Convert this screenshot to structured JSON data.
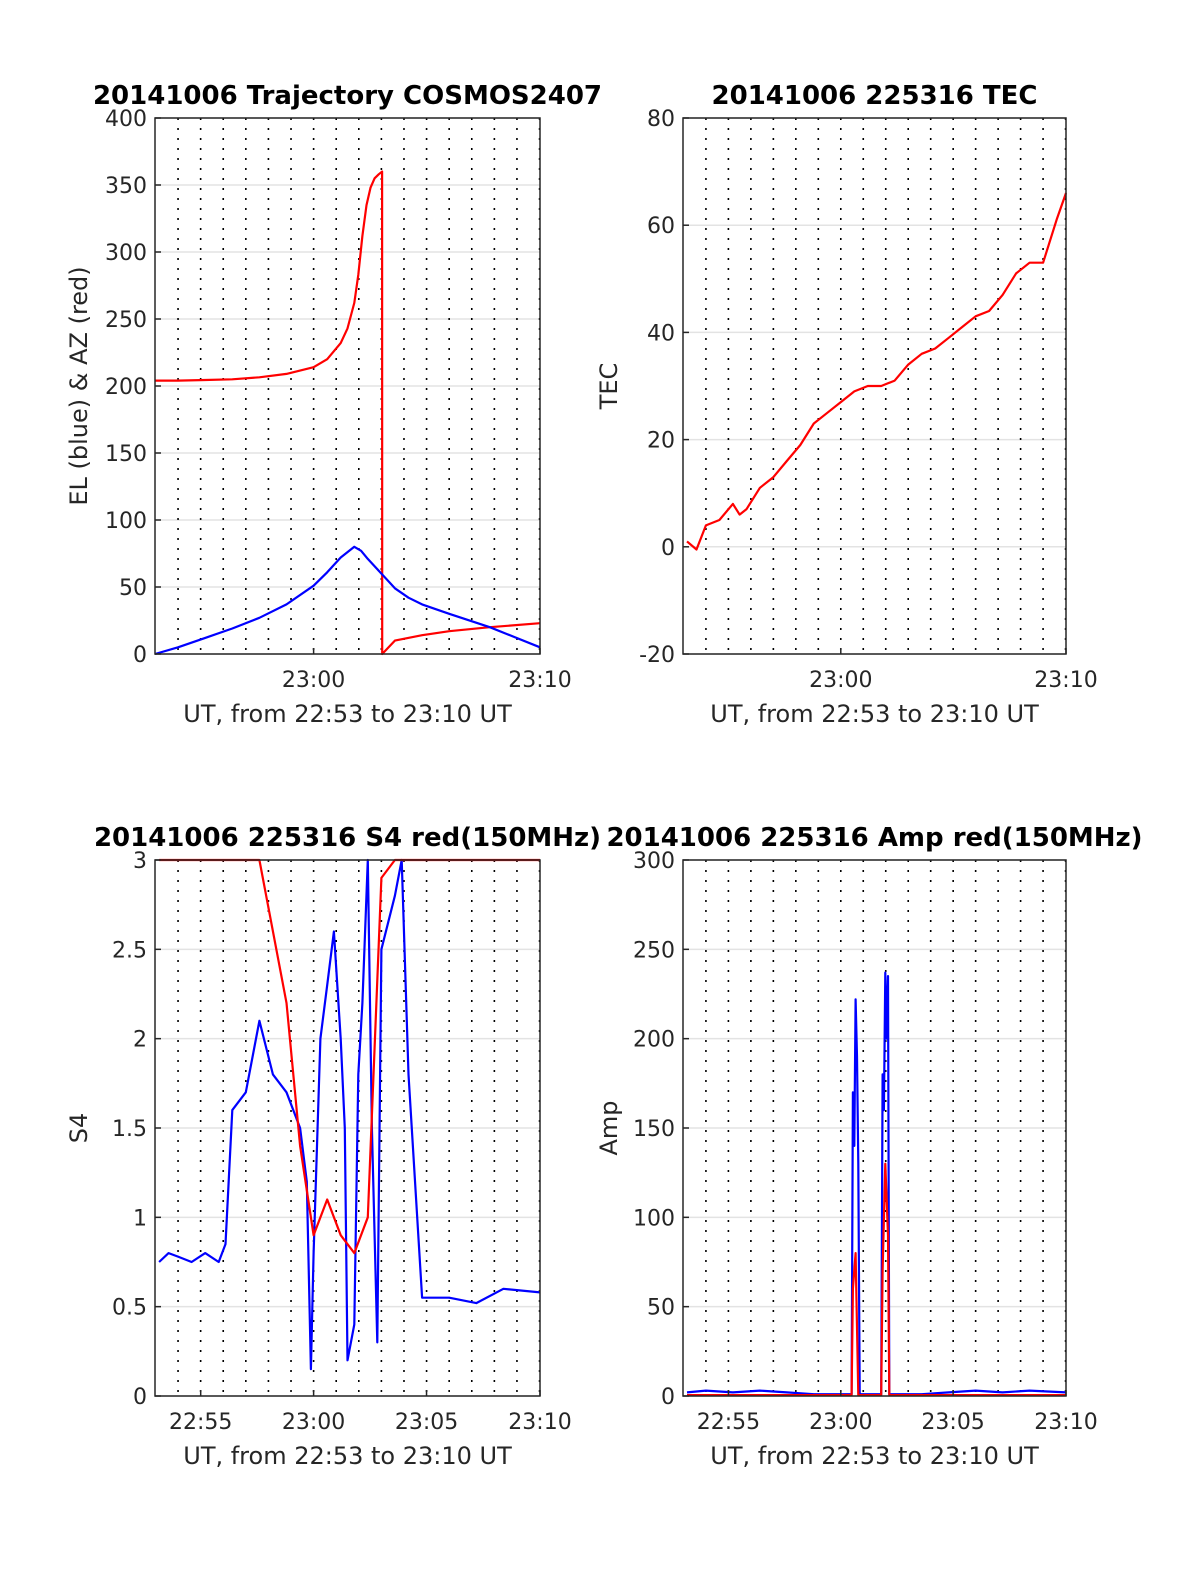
{
  "chart_data": [
    {
      "type": "line",
      "title": "20141006 Trajectory COSMOS2407",
      "xlabel": "UT, from 22:53 to 23:10 UT",
      "ylabel": "EL (blue) & AZ (red)",
      "xlim": [
        22.883,
        23.167
      ],
      "ylim": [
        0,
        400
      ],
      "x_ticks": [
        {
          "label": "23:00",
          "value": 23.0
        },
        {
          "label": "23:10",
          "value": 23.167
        }
      ],
      "y_ticks": [
        {
          "label": "0",
          "value": 0
        },
        {
          "label": "50",
          "value": 50
        },
        {
          "label": "100",
          "value": 100
        },
        {
          "label": "150",
          "value": 150
        },
        {
          "label": "200",
          "value": 200
        },
        {
          "label": "250",
          "value": 250
        },
        {
          "label": "300",
          "value": 300
        },
        {
          "label": "350",
          "value": 350
        },
        {
          "label": "400",
          "value": 400
        }
      ],
      "grid": true,
      "series": [
        {
          "color": "#ff0000",
          "x": [
            22.883,
            22.9,
            22.92,
            22.94,
            22.96,
            22.98,
            23.0,
            23.01,
            23.02,
            23.025,
            23.03,
            23.033,
            23.036,
            23.039,
            23.042,
            23.045,
            23.048,
            23.0505,
            23.0506,
            23.06,
            23.08,
            23.1,
            23.13,
            23.167
          ],
          "y": [
            204,
            204,
            204.5,
            205,
            206.5,
            209,
            214,
            220,
            232,
            243,
            262,
            283,
            312,
            335,
            348,
            355,
            358,
            360,
            0,
            10,
            14,
            17,
            20,
            23
          ]
        },
        {
          "color": "#0000ff",
          "x": [
            22.883,
            22.9,
            22.92,
            22.94,
            22.96,
            22.98,
            23.0,
            23.01,
            23.02,
            23.03,
            23.035,
            23.04,
            23.05,
            23.06,
            23.07,
            23.08,
            23.1,
            23.13,
            23.167
          ],
          "y": [
            0,
            5,
            12,
            19,
            27,
            37,
            51,
            61,
            72,
            80,
            77,
            71,
            60,
            49,
            42,
            37,
            30,
            20,
            5
          ]
        }
      ]
    },
    {
      "type": "line",
      "title": "20141006 225316 TEC",
      "xlabel": "UT, from 22:53 to 23:10 UT",
      "ylabel": "TEC",
      "xlim": [
        22.883,
        23.167
      ],
      "ylim": [
        -20,
        80
      ],
      "x_ticks": [
        {
          "label": "23:00",
          "value": 23.0
        },
        {
          "label": "23:10",
          "value": 23.167
        }
      ],
      "y_ticks": [
        {
          "label": "-20",
          "value": -20
        },
        {
          "label": "0",
          "value": 0
        },
        {
          "label": "20",
          "value": 20
        },
        {
          "label": "40",
          "value": 40
        },
        {
          "label": "60",
          "value": 60
        },
        {
          "label": "80",
          "value": 80
        }
      ],
      "grid": true,
      "series": [
        {
          "color": "#ff0000",
          "x": [
            22.886,
            22.893,
            22.9,
            22.91,
            22.92,
            22.925,
            22.93,
            22.94,
            22.95,
            22.96,
            22.97,
            22.98,
            22.99,
            23.0,
            23.01,
            23.02,
            23.03,
            23.04,
            23.05,
            23.06,
            23.07,
            23.08,
            23.09,
            23.1,
            23.11,
            23.12,
            23.13,
            23.14,
            23.15,
            23.16,
            23.167
          ],
          "y": [
            1,
            -0.5,
            4,
            5,
            8,
            6,
            7,
            11,
            13,
            16,
            19,
            23,
            25,
            27,
            29,
            30,
            30,
            31,
            34,
            36,
            37,
            39,
            41,
            43,
            44,
            47,
            51,
            53,
            53,
            61,
            66
          ]
        }
      ]
    },
    {
      "type": "line",
      "title": "20141006 225316 S4 red(150MHz)",
      "xlabel": "UT, from 22:53 to 23:10 UT",
      "ylabel": "S4",
      "xlim": [
        22.883,
        23.167
      ],
      "ylim": [
        0,
        3
      ],
      "x_ticks": [
        {
          "label": "22:55",
          "value": 22.9167
        },
        {
          "label": "23:00",
          "value": 23.0
        },
        {
          "label": "23:05",
          "value": 23.0833
        },
        {
          "label": "23:10",
          "value": 23.167
        }
      ],
      "y_ticks": [
        {
          "label": "0",
          "value": 0
        },
        {
          "label": "0.5",
          "value": 0.5
        },
        {
          "label": "1",
          "value": 1
        },
        {
          "label": "1.5",
          "value": 1.5
        },
        {
          "label": "2",
          "value": 2
        },
        {
          "label": "2.5",
          "value": 2.5
        },
        {
          "label": "3",
          "value": 3
        }
      ],
      "grid": true,
      "series": [
        {
          "color": "#0000ff",
          "x": [
            22.886,
            22.893,
            22.9,
            22.91,
            22.92,
            22.93,
            22.935,
            22.94,
            22.95,
            22.96,
            22.97,
            22.98,
            22.99,
            22.995,
            22.998,
            23.0,
            23.005,
            23.01,
            23.015,
            23.02,
            23.023,
            23.025,
            23.03,
            23.033,
            23.036,
            23.04,
            23.043,
            23.047,
            23.05,
            23.06,
            23.065,
            23.07,
            23.08,
            23.1,
            23.12,
            23.14,
            23.167
          ],
          "y": [
            0.75,
            0.8,
            0.78,
            0.75,
            0.8,
            0.75,
            0.85,
            1.6,
            1.7,
            2.1,
            1.8,
            1.7,
            1.5,
            1.2,
            0.15,
            0.8,
            2.0,
            2.3,
            2.6,
            2.0,
            1.5,
            0.2,
            0.4,
            1.8,
            2.2,
            3.0,
            1.5,
            0.3,
            2.5,
            2.8,
            3.0,
            1.8,
            0.55,
            0.55,
            0.52,
            0.6,
            0.58
          ]
        },
        {
          "color": "#ff0000",
          "x": [
            22.886,
            22.9,
            22.92,
            22.94,
            22.96,
            22.98,
            22.99,
            23.0,
            23.01,
            23.02,
            23.03,
            23.04,
            23.05,
            23.06,
            23.07,
            23.08,
            23.1,
            23.12,
            23.14,
            23.167
          ],
          "y": [
            3,
            3,
            3,
            3,
            3,
            2.2,
            1.4,
            0.9,
            1.1,
            0.9,
            0.8,
            1.0,
            2.9,
            3.0,
            3.0,
            3.0,
            3.0,
            3.0,
            3.0,
            3.0
          ]
        }
      ]
    },
    {
      "type": "line",
      "title": "20141006 225316 Amp red(150MHz)",
      "xlabel": "UT, from 22:53 to 23:10 UT",
      "ylabel": "Amp",
      "xlim": [
        22.883,
        23.167
      ],
      "ylim": [
        0,
        300
      ],
      "x_ticks": [
        {
          "label": "22:55",
          "value": 22.9167
        },
        {
          "label": "23:00",
          "value": 23.0
        },
        {
          "label": "23:05",
          "value": 23.0833
        },
        {
          "label": "23:10",
          "value": 23.167
        }
      ],
      "y_ticks": [
        {
          "label": "0",
          "value": 0
        },
        {
          "label": "50",
          "value": 50
        },
        {
          "label": "100",
          "value": 100
        },
        {
          "label": "150",
          "value": 150
        },
        {
          "label": "200",
          "value": 200
        },
        {
          "label": "250",
          "value": 250
        },
        {
          "label": "300",
          "value": 300
        }
      ],
      "grid": true,
      "series": [
        {
          "color": "#0000ff",
          "x": [
            22.886,
            22.9,
            22.92,
            22.94,
            22.96,
            22.98,
            22.995,
            23.008,
            23.009,
            23.01,
            23.011,
            23.012,
            23.013,
            23.014,
            23.016,
            23.03,
            23.031,
            23.032,
            23.033,
            23.034,
            23.035,
            23.036,
            23.04,
            23.06,
            23.08,
            23.1,
            23.12,
            23.14,
            23.167
          ],
          "y": [
            2,
            3,
            2,
            3,
            2,
            1,
            1,
            1,
            170,
            140,
            222,
            190,
            130,
            1,
            1,
            1,
            180,
            160,
            237,
            200,
            235,
            1,
            1,
            1,
            2,
            3,
            2,
            3,
            2
          ]
        },
        {
          "color": "#ff0000",
          "x": [
            22.886,
            23.008,
            23.009,
            23.011,
            23.013,
            23.03,
            23.031,
            23.033,
            23.035,
            23.036,
            23.167
          ],
          "y": [
            0.5,
            0.5,
            60,
            80,
            0.5,
            0.5,
            70,
            130,
            90,
            0.5,
            0.5
          ]
        }
      ]
    }
  ]
}
